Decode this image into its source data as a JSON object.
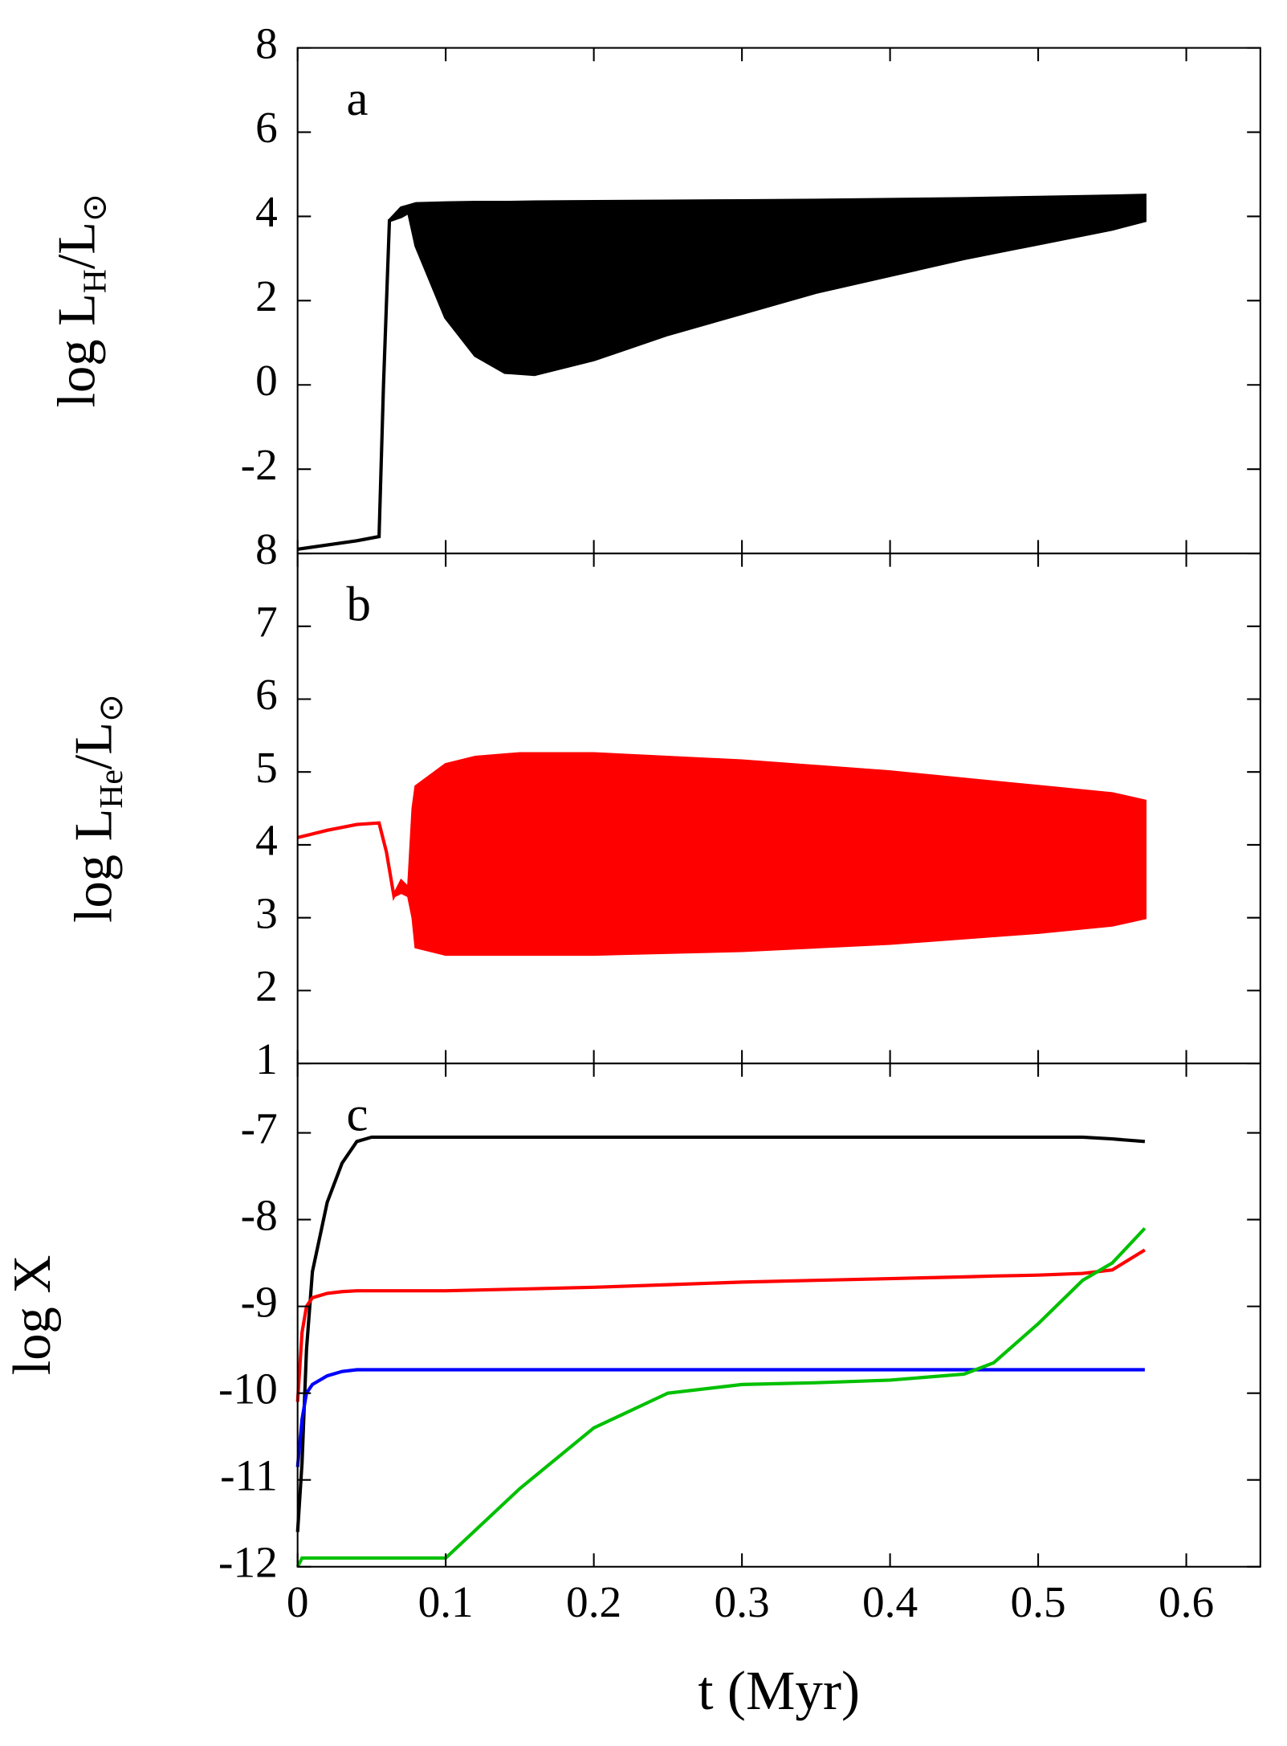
{
  "chart_data": [
    {
      "type": "line",
      "label": "a",
      "ylabel": [
        "log L",
        "H",
        "/L",
        "⊙"
      ],
      "xlim": [
        0,
        0.65
      ],
      "ylim": [
        -4,
        8
      ],
      "yticks": [
        8,
        6,
        4,
        2,
        0,
        -2
      ],
      "x": [
        0,
        0.02,
        0.04,
        0.055,
        0.058,
        0.062,
        0.07,
        0.075,
        0.08,
        0.1,
        0.12,
        0.14,
        0.16,
        0.2,
        0.25,
        0.3,
        0.35,
        0.4,
        0.45,
        0.5,
        0.55,
        0.572
      ],
      "series": [
        {
          "color": "#000000",
          "values": [
            -3.9,
            -3.8,
            -3.7,
            -3.6,
            0,
            3.9,
            4.2,
            4.25,
            4.3,
            4.32,
            4.33,
            4.33,
            4.34,
            4.35,
            4.36,
            4.37,
            4.38,
            4.4,
            4.42,
            4.45,
            4.48,
            4.5
          ],
          "low": [
            -3.9,
            -3.8,
            -3.7,
            -3.6,
            0,
            3.9,
            4.0,
            4.1,
            3.3,
            1.6,
            0.7,
            0.3,
            0.25,
            0.6,
            1.2,
            1.7,
            2.2,
            2.6,
            3.0,
            3.35,
            3.7,
            3.9
          ]
        }
      ]
    },
    {
      "type": "line",
      "label": "b",
      "ylabel": [
        "log L",
        "He",
        "/L",
        "⊙"
      ],
      "xlim": [
        0,
        0.65
      ],
      "ylim": [
        1,
        8
      ],
      "yticks": [
        8,
        7,
        6,
        5,
        4,
        3,
        2,
        1
      ],
      "x": [
        0,
        0.02,
        0.04,
        0.055,
        0.06,
        0.065,
        0.07,
        0.075,
        0.078,
        0.08,
        0.1,
        0.12,
        0.15,
        0.2,
        0.3,
        0.4,
        0.5,
        0.55,
        0.572
      ],
      "series": [
        {
          "color": "#ff0000",
          "values": [
            4.1,
            4.2,
            4.28,
            4.3,
            3.9,
            3.3,
            3.5,
            3.4,
            4.5,
            4.8,
            5.1,
            5.2,
            5.25,
            5.25,
            5.15,
            5.0,
            4.8,
            4.7,
            4.6
          ],
          "low": [
            4.1,
            4.2,
            4.28,
            4.3,
            3.9,
            3.3,
            3.35,
            3.3,
            3.0,
            2.6,
            2.5,
            2.5,
            2.5,
            2.5,
            2.55,
            2.65,
            2.8,
            2.9,
            3.0
          ]
        }
      ]
    },
    {
      "type": "line",
      "label": "c",
      "ylabel": [
        "log X"
      ],
      "xlabel": "t (Myr)",
      "xlim": [
        0,
        0.65
      ],
      "ylim": [
        -12,
        -6.2
      ],
      "yticks": [
        -7,
        -8,
        -9,
        -10,
        -11,
        -12
      ],
      "xticks": [
        0,
        0.1,
        0.2,
        0.3,
        0.4,
        0.5,
        0.6
      ],
      "x": [
        0,
        0.003,
        0.006,
        0.01,
        0.02,
        0.03,
        0.04,
        0.05,
        0.1,
        0.15,
        0.2,
        0.25,
        0.3,
        0.35,
        0.4,
        0.45,
        0.47,
        0.5,
        0.53,
        0.55,
        0.572
      ],
      "series": [
        {
          "color": "#000000",
          "values": [
            -11.6,
            -10.8,
            -9.5,
            -8.6,
            -7.8,
            -7.35,
            -7.1,
            -7.05,
            -7.05,
            -7.05,
            -7.05,
            -7.05,
            -7.05,
            -7.05,
            -7.05,
            -7.05,
            -7.05,
            -7.05,
            -7.05,
            -7.07,
            -7.1
          ]
        },
        {
          "color": "#ff0000",
          "values": [
            -10.1,
            -9.3,
            -9.0,
            -8.9,
            -8.85,
            -8.83,
            -8.82,
            -8.82,
            -8.82,
            -8.8,
            -8.78,
            -8.75,
            -8.72,
            -8.7,
            -8.68,
            -8.66,
            -8.65,
            -8.64,
            -8.62,
            -8.58,
            -8.35
          ]
        },
        {
          "color": "#0000ff",
          "values": [
            -10.85,
            -10.3,
            -10.0,
            -9.9,
            -9.8,
            -9.75,
            -9.73,
            -9.73,
            -9.73,
            -9.73,
            -9.73,
            -9.73,
            -9.73,
            -9.73,
            -9.73,
            -9.73,
            -9.73,
            -9.73,
            -9.73,
            -9.73,
            -9.73
          ]
        },
        {
          "color": "#00c000",
          "values": [
            -12,
            -11.9,
            -11.9,
            -11.9,
            -11.9,
            -11.9,
            -11.9,
            -11.9,
            -11.9,
            -11.1,
            -10.4,
            -10.0,
            -9.9,
            -9.88,
            -9.85,
            -9.78,
            -9.65,
            -9.2,
            -8.7,
            -8.5,
            -8.1
          ]
        }
      ]
    }
  ]
}
